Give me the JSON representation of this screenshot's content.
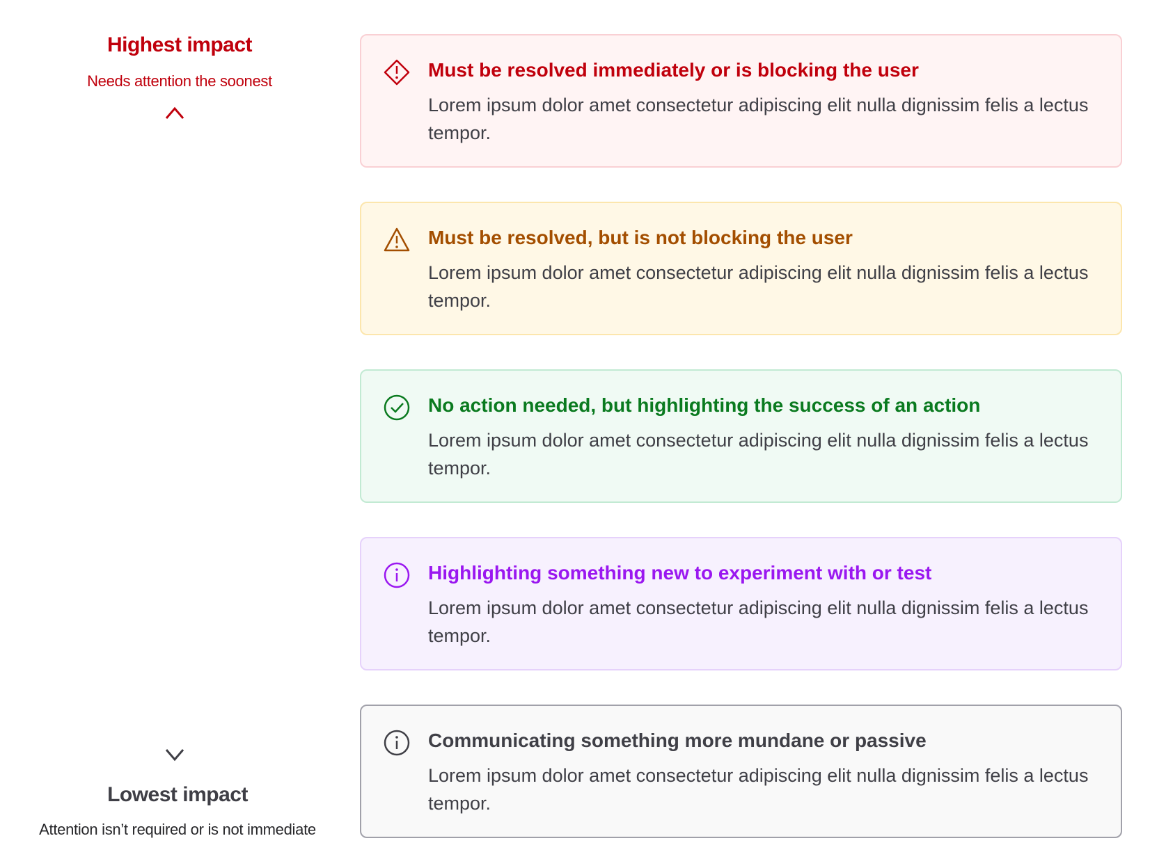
{
  "scale": {
    "top_label": "Highest impact",
    "top_sublabel": "Needs attention the soonest",
    "bottom_label": "Lowest impact",
    "bottom_sublabel": "Attention isn’t required or is not immediate",
    "gradient_colors": [
      "#c0000c",
      "#a34e00",
      "#0a7a1f",
      "#9a17f0",
      "#3f3f46"
    ]
  },
  "cards": [
    {
      "variant": "critical",
      "icon": "diamond-exclamation-icon",
      "title": "Must be resolved immediately or is blocking the user",
      "body": "Lorem ipsum dolor amet consectetur adipiscing elit nulla dignissim felis a lectus tempor.",
      "color": "#c0000c",
      "background": "#fff4f4",
      "border": "#f9d0d4"
    },
    {
      "variant": "warning",
      "icon": "warning-triangle-icon",
      "title": "Must be resolved, but is not blocking the user",
      "body": "Lorem ipsum dolor amet consectetur adipiscing elit nulla dignissim felis a lectus tempor.",
      "color": "#a34e00",
      "background": "#fff8e6",
      "border": "#fce6ad"
    },
    {
      "variant": "success",
      "icon": "check-circle-icon",
      "title": "No action needed, but highlighting the success of an action",
      "body": "Lorem ipsum dolor amet consectetur adipiscing elit nulla dignissim felis a lectus tempor.",
      "color": "#0a7a1f",
      "background": "#f0faf4",
      "border": "#c2ead3"
    },
    {
      "variant": "new",
      "icon": "info-circle-icon",
      "title": "Highlighting something new to experiment with or test",
      "body": "Lorem ipsum dolor amet consectetur adipiscing elit nulla dignissim felis a lectus tempor.",
      "color": "#9a17f0",
      "background": "#f7f1fe",
      "border": "#e6d2fb"
    },
    {
      "variant": "neutral",
      "icon": "info-circle-icon",
      "title": "Communicating something more mundane or passive",
      "body": "Lorem ipsum dolor amet consectetur adipiscing elit nulla dignissim felis a lectus tempor.",
      "color": "#3f3f46",
      "background": "#f9f9f9",
      "border": "#a1a1aa"
    }
  ]
}
